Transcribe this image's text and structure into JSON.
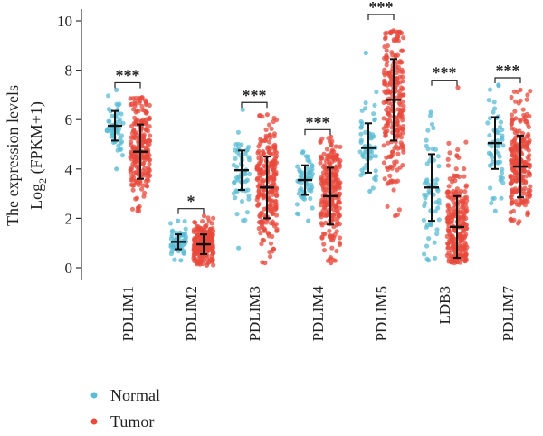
{
  "chart_data": {
    "type": "scatter",
    "subtype": "jitter-strip-with-mean-sd",
    "title": "",
    "ylabel": "The expression levels",
    "ylabel_line2_prefix": "Log",
    "ylabel_line2_sub": "2",
    "ylabel_line2_suffix": " (FPKM+1)",
    "ylim": [
      0,
      10
    ],
    "yticks": [
      0,
      2,
      4,
      6,
      8,
      10
    ],
    "grid": false,
    "legend_position": "bottom-left",
    "categories": [
      "PDLIM1",
      "PDLIM2",
      "PDLIM3",
      "PDLIM4",
      "PDLIM5",
      "LDB3",
      "PDLIM7"
    ],
    "significance": [
      "***",
      "*",
      "***",
      "***",
      "***",
      "***",
      "***"
    ],
    "series": [
      {
        "name": "Normal",
        "color": "#5bbcd4",
        "mean": [
          5.75,
          1.05,
          3.95,
          3.55,
          4.85,
          3.25,
          5.05
        ],
        "sd": [
          0.6,
          0.3,
          0.8,
          0.6,
          1.0,
          1.35,
          1.05
        ],
        "range": [
          [
            4.0,
            7.2
          ],
          [
            0.3,
            1.9
          ],
          [
            0.8,
            6.4
          ],
          [
            1.9,
            4.7
          ],
          [
            3.1,
            8.7
          ],
          [
            0.3,
            6.3
          ],
          [
            2.3,
            7.4
          ]
        ]
      },
      {
        "name": "Tumor",
        "color": "#e8493c",
        "mean": [
          4.7,
          0.95,
          3.25,
          2.9,
          6.8,
          1.65,
          4.1
        ],
        "sd": [
          1.1,
          0.4,
          1.25,
          1.15,
          1.65,
          1.25,
          1.25
        ],
        "range": [
          [
            2.3,
            6.9
          ],
          [
            0.1,
            2.1
          ],
          [
            0.2,
            6.2
          ],
          [
            0.2,
            5.3
          ],
          [
            2.1,
            9.6
          ],
          [
            0.2,
            7.3
          ],
          [
            1.8,
            7.2
          ]
        ]
      }
    ]
  },
  "legend": {
    "normal_label": "Normal",
    "tumor_label": "Tumor"
  }
}
